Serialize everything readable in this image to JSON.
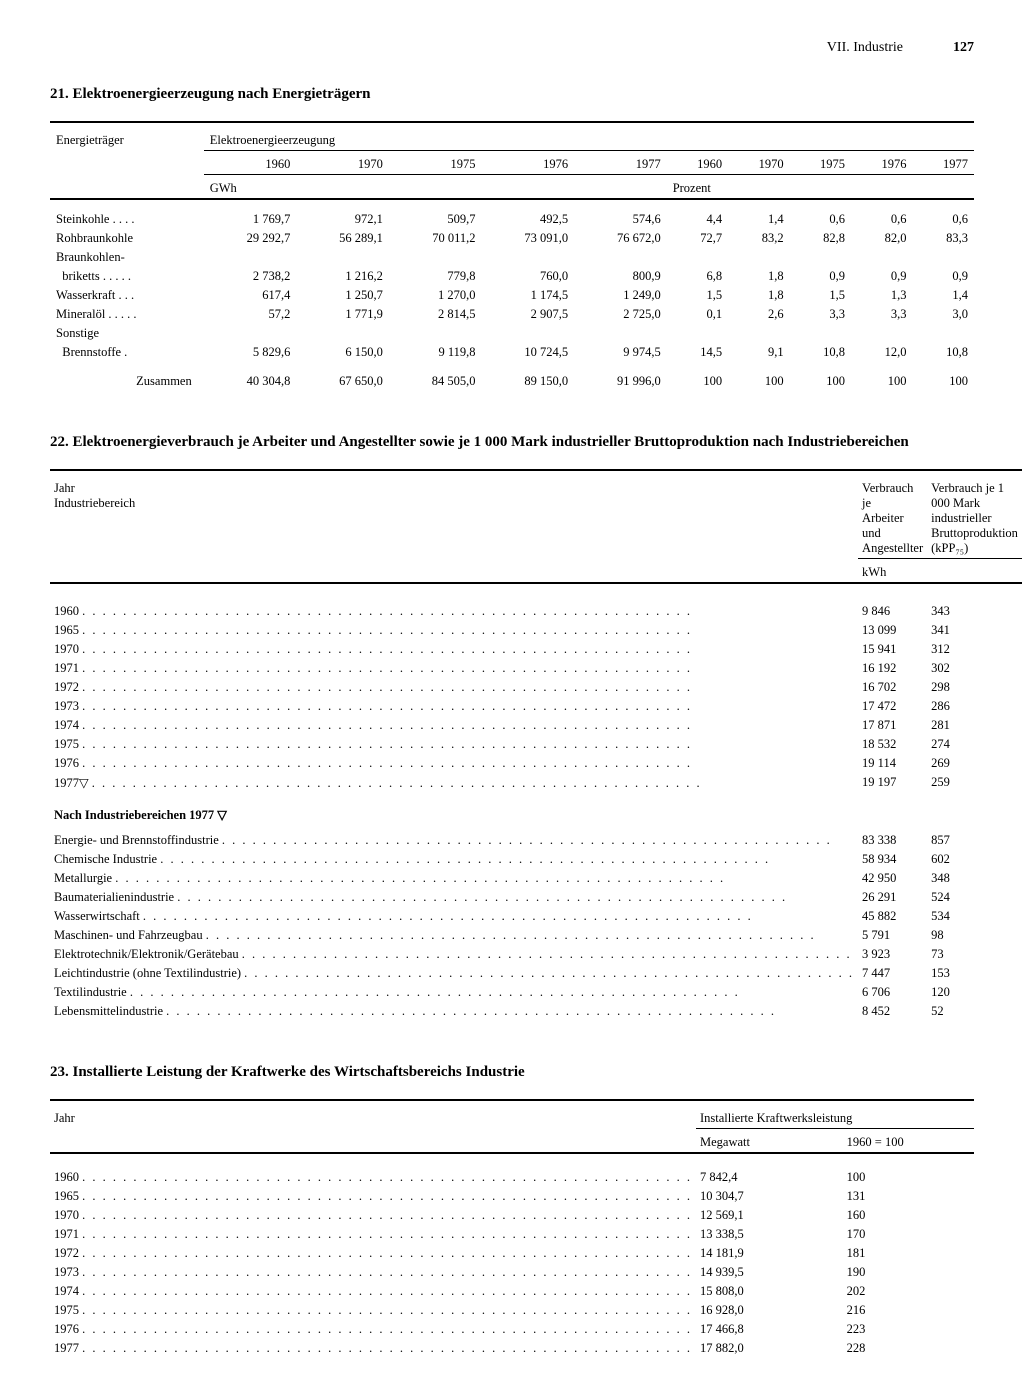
{
  "page": {
    "section": "VII. Industrie",
    "number": "127"
  },
  "table21": {
    "title": "21. Elektroenergieerzeugung nach Energieträgern",
    "col_label": "Energieträger",
    "group_label": "Elektroenergieerzeugung",
    "years": [
      "1960",
      "1970",
      "1975",
      "1976",
      "1977",
      "1960",
      "1970",
      "1975",
      "1976",
      "1977"
    ],
    "unit_left": "GWh",
    "unit_right": "Prozent",
    "rows": [
      {
        "label": "Steinkohle  . . . .",
        "v": [
          "1 769,7",
          "972,1",
          "509,7",
          "492,5",
          "574,6",
          "4,4",
          "1,4",
          "0,6",
          "0,6",
          "0,6"
        ]
      },
      {
        "label": "Rohbraunkohle",
        "v": [
          "29 292,7",
          "56 289,1",
          "70 011,2",
          "73 091,0",
          "76 672,0",
          "72,7",
          "83,2",
          "82,8",
          "82,0",
          "83,3"
        ]
      },
      {
        "label": "Braunkohlen-",
        "v": [
          "",
          "",
          "",
          "",
          "",
          "",
          "",
          "",
          "",
          ""
        ]
      },
      {
        "label": "  briketts . . . . .",
        "v": [
          "2 738,2",
          "1 216,2",
          "779,8",
          "760,0",
          "800,9",
          "6,8",
          "1,8",
          "0,9",
          "0,9",
          "0,9"
        ]
      },
      {
        "label": "Wasserkraft  . . .",
        "v": [
          "617,4",
          "1 250,7",
          "1 270,0",
          "1 174,5",
          "1 249,0",
          "1,5",
          "1,8",
          "1,5",
          "1,3",
          "1,4"
        ]
      },
      {
        "label": "Mineralöl  . . . . .",
        "v": [
          "57,2",
          "1 771,9",
          "2 814,5",
          "2 907,5",
          "2 725,0",
          "0,1",
          "2,6",
          "3,3",
          "3,3",
          "3,0"
        ]
      },
      {
        "label": "Sonstige",
        "v": [
          "",
          "",
          "",
          "",
          "",
          "",
          "",
          "",
          "",
          ""
        ]
      },
      {
        "label": "  Brennstoffe  .",
        "v": [
          "5 829,6",
          "6 150,0",
          "9 119,8",
          "10 724,5",
          "9 974,5",
          "14,5",
          "9,1",
          "10,8",
          "12,0",
          "10,8"
        ]
      }
    ],
    "total": {
      "label": "Zusammen",
      "v": [
        "40 304,8",
        "67 650,0",
        "84 505,0",
        "89 150,0",
        "91 996,0",
        "100",
        "100",
        "100",
        "100",
        "100"
      ]
    }
  },
  "table22": {
    "title": "22. Elektroenergieverbrauch je Arbeiter und Angestellter sowie je 1 000 Mark industrieller Bruttoproduktion nach Industriebereichen",
    "head_left_1": "Jahr",
    "head_left_2": "Industriebereich",
    "head_mid_1": "Verbrauch je",
    "head_mid_2": "Arbeiter und Angestellter",
    "head_right_1": "Verbrauch je 1 000 Mark",
    "head_right_2": "industrieller Bruttoproduktion (kPP₇₅)",
    "unit": "kWh",
    "years": [
      {
        "y": "1960",
        "a": "9 846",
        "b": "343"
      },
      {
        "y": "1965",
        "a": "13 099",
        "b": "341"
      },
      {
        "y": "1970",
        "a": "15 941",
        "b": "312"
      },
      {
        "y": "1971",
        "a": "16 192",
        "b": "302"
      },
      {
        "y": "1972",
        "a": "16 702",
        "b": "298"
      },
      {
        "y": "1973",
        "a": "17 472",
        "b": "286"
      },
      {
        "y": "1974",
        "a": "17 871",
        "b": "281"
      },
      {
        "y": "1975",
        "a": "18 532",
        "b": "274"
      },
      {
        "y": "1976",
        "a": "19 114",
        "b": "269"
      },
      {
        "y": "1977▽",
        "a": "19 197",
        "b": "259"
      }
    ],
    "subhead": "Nach Industriebereichen 1977 ▽",
    "branches": [
      {
        "y": "Energie- und Brennstoffindustrie",
        "a": "83 338",
        "b": "857"
      },
      {
        "y": "Chemische Industrie",
        "a": "58 934",
        "b": "602"
      },
      {
        "y": "Metallurgie",
        "a": "42 950",
        "b": "348"
      },
      {
        "y": "Baumaterialienindustrie",
        "a": "26 291",
        "b": "524"
      },
      {
        "y": "Wasserwirtschaft",
        "a": "45 882",
        "b": "534"
      },
      {
        "y": "Maschinen- und Fahrzeugbau",
        "a": "5 791",
        "b": "98"
      },
      {
        "y": "Elektrotechnik/Elektronik/Gerätebau",
        "a": "3 923",
        "b": "73"
      },
      {
        "y": "Leichtindustrie (ohne Textilindustrie)",
        "a": "7 447",
        "b": "153"
      },
      {
        "y": "Textilindustrie",
        "a": "6 706",
        "b": "120"
      },
      {
        "y": "Lebensmittelindustrie",
        "a": "8 452",
        "b": "52"
      }
    ]
  },
  "table23": {
    "title": "23. Installierte Leistung der Kraftwerke des Wirtschaftsbereichs Industrie",
    "head_left": "Jahr",
    "head_group": "Installierte Kraftwerksleistung",
    "head_mid": "Megawatt",
    "head_right": "1960 = 100",
    "rows": [
      {
        "y": "1960",
        "a": "7 842,4",
        "b": "100"
      },
      {
        "y": "1965",
        "a": "10 304,7",
        "b": "131"
      },
      {
        "y": "1970",
        "a": "12 569,1",
        "b": "160"
      },
      {
        "y": "1971",
        "a": "13 338,5",
        "b": "170"
      },
      {
        "y": "1972",
        "a": "14 181,9",
        "b": "181"
      },
      {
        "y": "1973",
        "a": "14 939,5",
        "b": "190"
      },
      {
        "y": "1974",
        "a": "15 808,0",
        "b": "202"
      },
      {
        "y": "1975",
        "a": "16 928,0",
        "b": "216"
      },
      {
        "y": "1976",
        "a": "17 466,8",
        "b": "223"
      },
      {
        "y": "1977",
        "a": "17 882,0",
        "b": "228"
      }
    ]
  }
}
